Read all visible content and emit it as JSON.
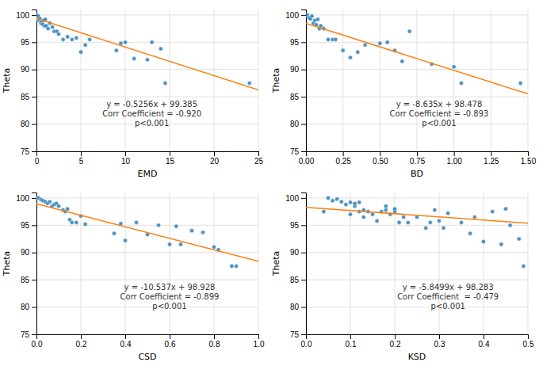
{
  "chart_data": [
    {
      "type": "scatter",
      "x_label": "EMD",
      "y_label": "Theta",
      "grid": true,
      "xlim": [
        0,
        25
      ],
      "ylim": [
        75,
        101
      ],
      "xticks": [
        0,
        5,
        10,
        15,
        20,
        25
      ],
      "yticks": [
        75,
        80,
        85,
        90,
        95,
        100
      ],
      "series": [
        {
          "type": "scatter",
          "x": [
            0.05,
            0.1,
            0.15,
            0.2,
            0.3,
            0.4,
            0.5,
            0.6,
            0.7,
            0.8,
            0.9,
            1.0,
            1.1,
            1.3,
            1.5,
            1.8,
            2.0,
            2.3,
            2.5,
            3.0,
            3.5,
            4.0,
            4.5,
            5.0,
            5.5,
            6.0,
            9.0,
            9.5,
            10.0,
            11.0,
            12.5,
            13.0,
            14.0,
            14.5,
            24.0
          ],
          "values": [
            100,
            99.5,
            99.3,
            99.8,
            99.0,
            99.3,
            98.5,
            98.8,
            98.3,
            99.0,
            98.0,
            99.2,
            98.0,
            97.5,
            98.5,
            97.8,
            97.0,
            97.0,
            96.5,
            95.5,
            96.0,
            95.5,
            95.8,
            93.2,
            94.5,
            95.5,
            93.5,
            94.8,
            95.0,
            92.0,
            91.8,
            95.0,
            93.8,
            87.5,
            87.5
          ]
        },
        {
          "type": "line",
          "x": [
            0,
            25
          ],
          "values": [
            99.385,
            86.245
          ]
        }
      ],
      "annotations": [
        {
          "x": 13.0,
          "y": 84.5,
          "lines": [
            "y = -0.5256x + 99.385",
            "Corr Coefficient = -0.920",
            "p<0.001"
          ]
        }
      ]
    },
    {
      "type": "scatter",
      "x_label": "BD",
      "y_label": "Theta",
      "grid": true,
      "xlim": [
        0,
        1.5
      ],
      "ylim": [
        75,
        101
      ],
      "xticks": [
        {
          "value": 0,
          "label": "0.00"
        },
        0.25,
        {
          "value": 0.5,
          "label": "0.50"
        },
        0.75,
        {
          "value": 1.0,
          "label": "1.00"
        },
        1.25,
        {
          "value": 1.5,
          "label": "1.50"
        }
      ],
      "yticks": [
        75,
        80,
        85,
        90,
        95,
        100
      ],
      "series": [
        {
          "type": "scatter",
          "x": [
            0.01,
            0.02,
            0.03,
            0.04,
            0.05,
            0.06,
            0.07,
            0.08,
            0.09,
            0.1,
            0.12,
            0.15,
            0.18,
            0.2,
            0.25,
            0.3,
            0.35,
            0.4,
            0.5,
            0.55,
            0.6,
            0.65,
            0.7,
            0.85,
            1.0,
            1.05,
            1.45
          ],
          "values": [
            100,
            99.5,
            99.3,
            99.8,
            98.5,
            99.0,
            98.2,
            99.2,
            97.5,
            98.0,
            97.5,
            95.5,
            95.5,
            95.5,
            93.5,
            92.2,
            93.2,
            94.5,
            94.8,
            95.0,
            93.5,
            91.5,
            97.0,
            91.0,
            90.5,
            87.5,
            87.5
          ]
        },
        {
          "type": "line",
          "x": [
            0,
            1.5
          ],
          "values": [
            98.478,
            85.5255
          ]
        }
      ],
      "annotations": [
        {
          "x": 0.9,
          "y": 84.5,
          "lines": [
            "y = -8.635x + 98.478",
            "Corr Coefficient = -0.893",
            "p<0.001"
          ]
        }
      ]
    },
    {
      "type": "scatter",
      "x_label": "CSD",
      "y_label": "Theta",
      "grid": true,
      "xlim": [
        0,
        1.0
      ],
      "ylim": [
        75,
        101
      ],
      "xticks": [
        {
          "value": 0,
          "label": "0.0"
        },
        0.2,
        0.4,
        0.6,
        0.8,
        {
          "value": 1.0,
          "label": "1.0"
        }
      ],
      "yticks": [
        75,
        80,
        85,
        90,
        95,
        100
      ],
      "series": [
        {
          "type": "scatter",
          "x": [
            0.01,
            0.02,
            0.03,
            0.04,
            0.05,
            0.06,
            0.07,
            0.08,
            0.09,
            0.1,
            0.12,
            0.13,
            0.14,
            0.15,
            0.16,
            0.18,
            0.2,
            0.22,
            0.35,
            0.38,
            0.4,
            0.45,
            0.5,
            0.55,
            0.6,
            0.63,
            0.65,
            0.7,
            0.75,
            0.8,
            0.82,
            0.88,
            0.9
          ],
          "values": [
            100,
            99.7,
            99.5,
            99.3,
            99.0,
            99.3,
            98.5,
            98.8,
            99.0,
            98.5,
            97.8,
            97.5,
            98.0,
            96.0,
            95.5,
            95.5,
            96.7,
            95.2,
            93.5,
            95.3,
            92.2,
            95.5,
            93.3,
            95.0,
            91.5,
            94.8,
            91.5,
            94.0,
            93.7,
            91.0,
            90.5,
            87.5,
            87.5
          ]
        },
        {
          "type": "line",
          "x": [
            0,
            1.0
          ],
          "values": [
            98.928,
            88.391
          ]
        }
      ],
      "annotations": [
        {
          "x": 0.6,
          "y": 84.5,
          "lines": [
            "y = -10.537x + 98.928",
            "Corr Coefficient = -0.899",
            "p<0.001"
          ]
        }
      ]
    },
    {
      "type": "scatter",
      "x_label": "KSD",
      "y_label": "Theta",
      "grid": true,
      "xlim": [
        0,
        0.5
      ],
      "ylim": [
        75,
        101
      ],
      "xticks": [
        {
          "value": 0,
          "label": "0.0"
        },
        0.1,
        0.2,
        0.3,
        0.4,
        0.5
      ],
      "yticks": [
        75,
        80,
        85,
        90,
        95,
        100
      ],
      "series": [
        {
          "type": "scatter",
          "x": [
            0.04,
            0.05,
            0.06,
            0.07,
            0.08,
            0.09,
            0.1,
            0.1,
            0.11,
            0.11,
            0.12,
            0.12,
            0.13,
            0.13,
            0.14,
            0.15,
            0.16,
            0.17,
            0.18,
            0.18,
            0.19,
            0.2,
            0.2,
            0.21,
            0.22,
            0.23,
            0.25,
            0.27,
            0.28,
            0.29,
            0.3,
            0.31,
            0.32,
            0.35,
            0.37,
            0.38,
            0.4,
            0.42,
            0.44,
            0.45,
            0.46,
            0.48,
            0.49
          ],
          "values": [
            97.5,
            100,
            99.5,
            99.8,
            99.3,
            98.8,
            99.2,
            97.0,
            98.5,
            99.0,
            97.5,
            99.2,
            97.8,
            96.5,
            97.5,
            97.0,
            95.8,
            97.5,
            97.8,
            98.5,
            97.0,
            97.5,
            98.0,
            95.5,
            96.5,
            95.5,
            96.5,
            94.5,
            95.5,
            97.8,
            95.8,
            94.5,
            97.2,
            95.5,
            93.5,
            96.5,
            92.0,
            97.5,
            91.5,
            98.0,
            95.0,
            92.5,
            87.5
          ]
        },
        {
          "type": "line",
          "x": [
            0,
            0.5
          ],
          "values": [
            98.283,
            95.35805
          ]
        }
      ],
      "annotations": [
        {
          "x": 0.32,
          "y": 84.5,
          "lines": [
            "y = -5.8499x + 98.283",
            "Corr Coefficient  = -0.479",
            "p<0.001"
          ]
        }
      ]
    }
  ]
}
